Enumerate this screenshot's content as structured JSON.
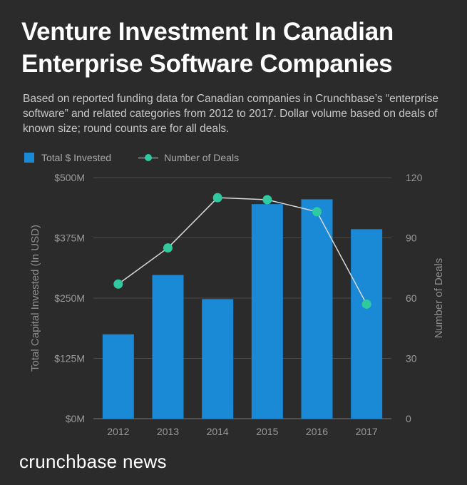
{
  "title_lines": [
    "Venture Investment In Canadian",
    "Enterprise Software Companies"
  ],
  "subtitle": "Based on reported funding data for Canadian companies in Crunchbase’s “enterprise software” and related categories from 2012 to 2017. Dollar volume based on deals of known size; round counts are for all deals.",
  "legend": {
    "bars_label": "Total $ Invested",
    "line_label": "Number of Deals"
  },
  "brand": "crunchbase news",
  "colors": {
    "bar": "#1a8ad6",
    "dot": "#2fcaa0",
    "line": "#d9d9d9",
    "background": "#2b2b2b"
  },
  "chart_data": {
    "type": "bar",
    "categories": [
      "2012",
      "2013",
      "2014",
      "2015",
      "2016",
      "2017"
    ],
    "series": [
      {
        "name": "Total $ Invested",
        "type": "bar",
        "axis": "left",
        "values": [
          175,
          298,
          248,
          445,
          455,
          393
        ]
      },
      {
        "name": "Number of Deals",
        "type": "line",
        "axis": "right",
        "values": [
          67,
          85,
          110,
          109,
          103,
          57
        ]
      }
    ],
    "ylabel": "Total Capital Invested (In USD)",
    "y2label": "Number of Deals",
    "ylim": [
      0,
      500
    ],
    "y2lim": [
      0,
      120
    ],
    "yticks": [
      0,
      125,
      250,
      375,
      500
    ],
    "ytick_labels": [
      "$0M",
      "$125M",
      "$250M",
      "$375M",
      "$500M"
    ],
    "y2ticks": [
      0,
      30,
      60,
      90,
      120
    ],
    "y2tick_labels": [
      "0",
      "30",
      "60",
      "90",
      "120"
    ],
    "grid": true,
    "legend_position": "top-left"
  }
}
